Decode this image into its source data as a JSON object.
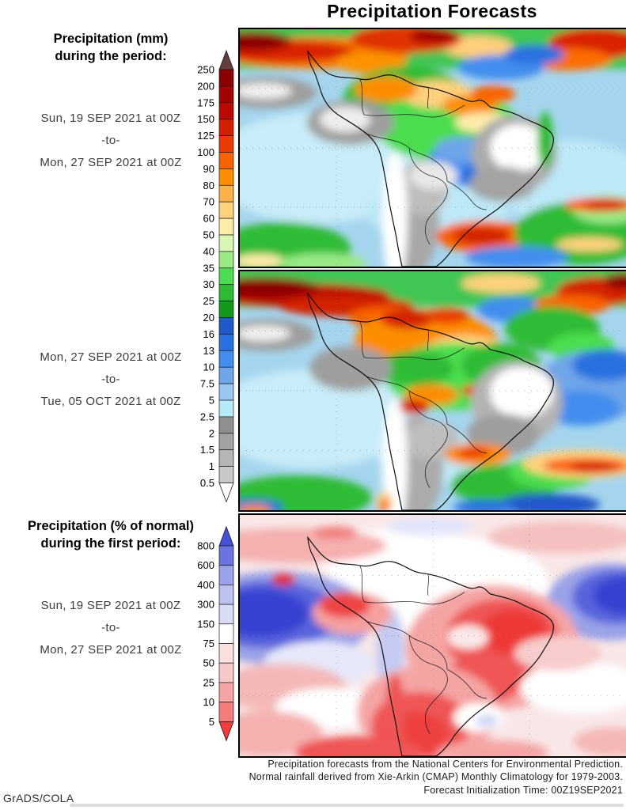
{
  "title": "Precipitation Forecasts",
  "panels": {
    "mm": {
      "heading": [
        "Precipitation (mm)",
        "during the period:"
      ],
      "period1": {
        "start": "Sun, 19 SEP 2021 at 00Z",
        "separator": "-to-",
        "end": "Mon, 27 SEP 2021 at 00Z"
      },
      "period2": {
        "start": "Mon, 27 SEP 2021 at 00Z",
        "separator": "-to-",
        "end": "Tue, 05 OCT 2021 at 00Z"
      }
    },
    "pct": {
      "heading": [
        "Precipitation (% of normal)",
        "during the first period:"
      ],
      "period": {
        "start": "Sun, 19 SEP 2021 at 00Z",
        "separator": "-to-",
        "end": "Mon, 27 SEP 2021 at 00Z"
      }
    }
  },
  "colorbar_mm": {
    "unit": "mm",
    "ticks": [
      "250",
      "200",
      "175",
      "150",
      "125",
      "100",
      "90",
      "80",
      "70",
      "60",
      "50",
      "40",
      "35",
      "30",
      "25",
      "20",
      "16",
      "13",
      "10",
      "7.5",
      "5",
      "2.5",
      "2",
      "1.5",
      "1",
      "0.5"
    ],
    "segment_colors": [
      "#8b0000",
      "#a30300",
      "#bb0800",
      "#d32000",
      "#e93c00",
      "#f96200",
      "#fd8d00",
      "#fdb14b",
      "#fed27e",
      "#feeca9",
      "#d7f6b4",
      "#99ea85",
      "#4bdd4f",
      "#2dbb36",
      "#14991d",
      "#2059c9",
      "#2a71e0",
      "#438dee",
      "#6ea5e9",
      "#9ac7ef",
      "#b7eaf7",
      "#8f8f8f",
      "#a2a2a2",
      "#b5b5b5",
      "#c8c8c8"
    ],
    "top_arrow_color": "#643e3c",
    "bottom_arrow_color": "#ffffff"
  },
  "colorbar_pct": {
    "unit": "% of normal",
    "ticks": [
      "800",
      "600",
      "400",
      "300",
      "150",
      "75",
      "50",
      "25",
      "10",
      "5"
    ],
    "segment_colors": [
      "#6a74e0",
      "#9aa2e8",
      "#bcc2f0",
      "#d9dcf7",
      "#ffffff",
      "#fbe0e0",
      "#f8c8c8",
      "#f5a4a4",
      "#f47c7c"
    ],
    "top_arrow_color": "#4450d8",
    "bottom_arrow_color": "#f33c3c"
  },
  "maps": [
    {
      "name": "precip-mm-first-period",
      "label": "Precipitation (mm), Sun, 19 SEP 2021 at 00Z -to- Mon, 27 SEP 2021 at 00Z"
    },
    {
      "name": "precip-mm-second-period",
      "label": "Precipitation (mm), Mon, 27 SEP 2021 at 00Z -to- Tue, 05 OCT 2021 at 00Z"
    },
    {
      "name": "precip-pct-of-normal-first-period",
      "label": "Precipitation (% of normal), Sun, 19 SEP 2021 at 00Z -to- Mon, 27 SEP 2021 at 00Z"
    }
  ],
  "footer": {
    "line1": "Precipitation forecasts from the National Centers for Environmental Prediction.",
    "line2": "Normal rainfall derived from Xie-Arkin (CMAP) Monthly Climatology for 1979-2003.",
    "line3": "Forecast Initialization Time: 00Z19SEP2021"
  },
  "credit": "GrADS/COLA"
}
